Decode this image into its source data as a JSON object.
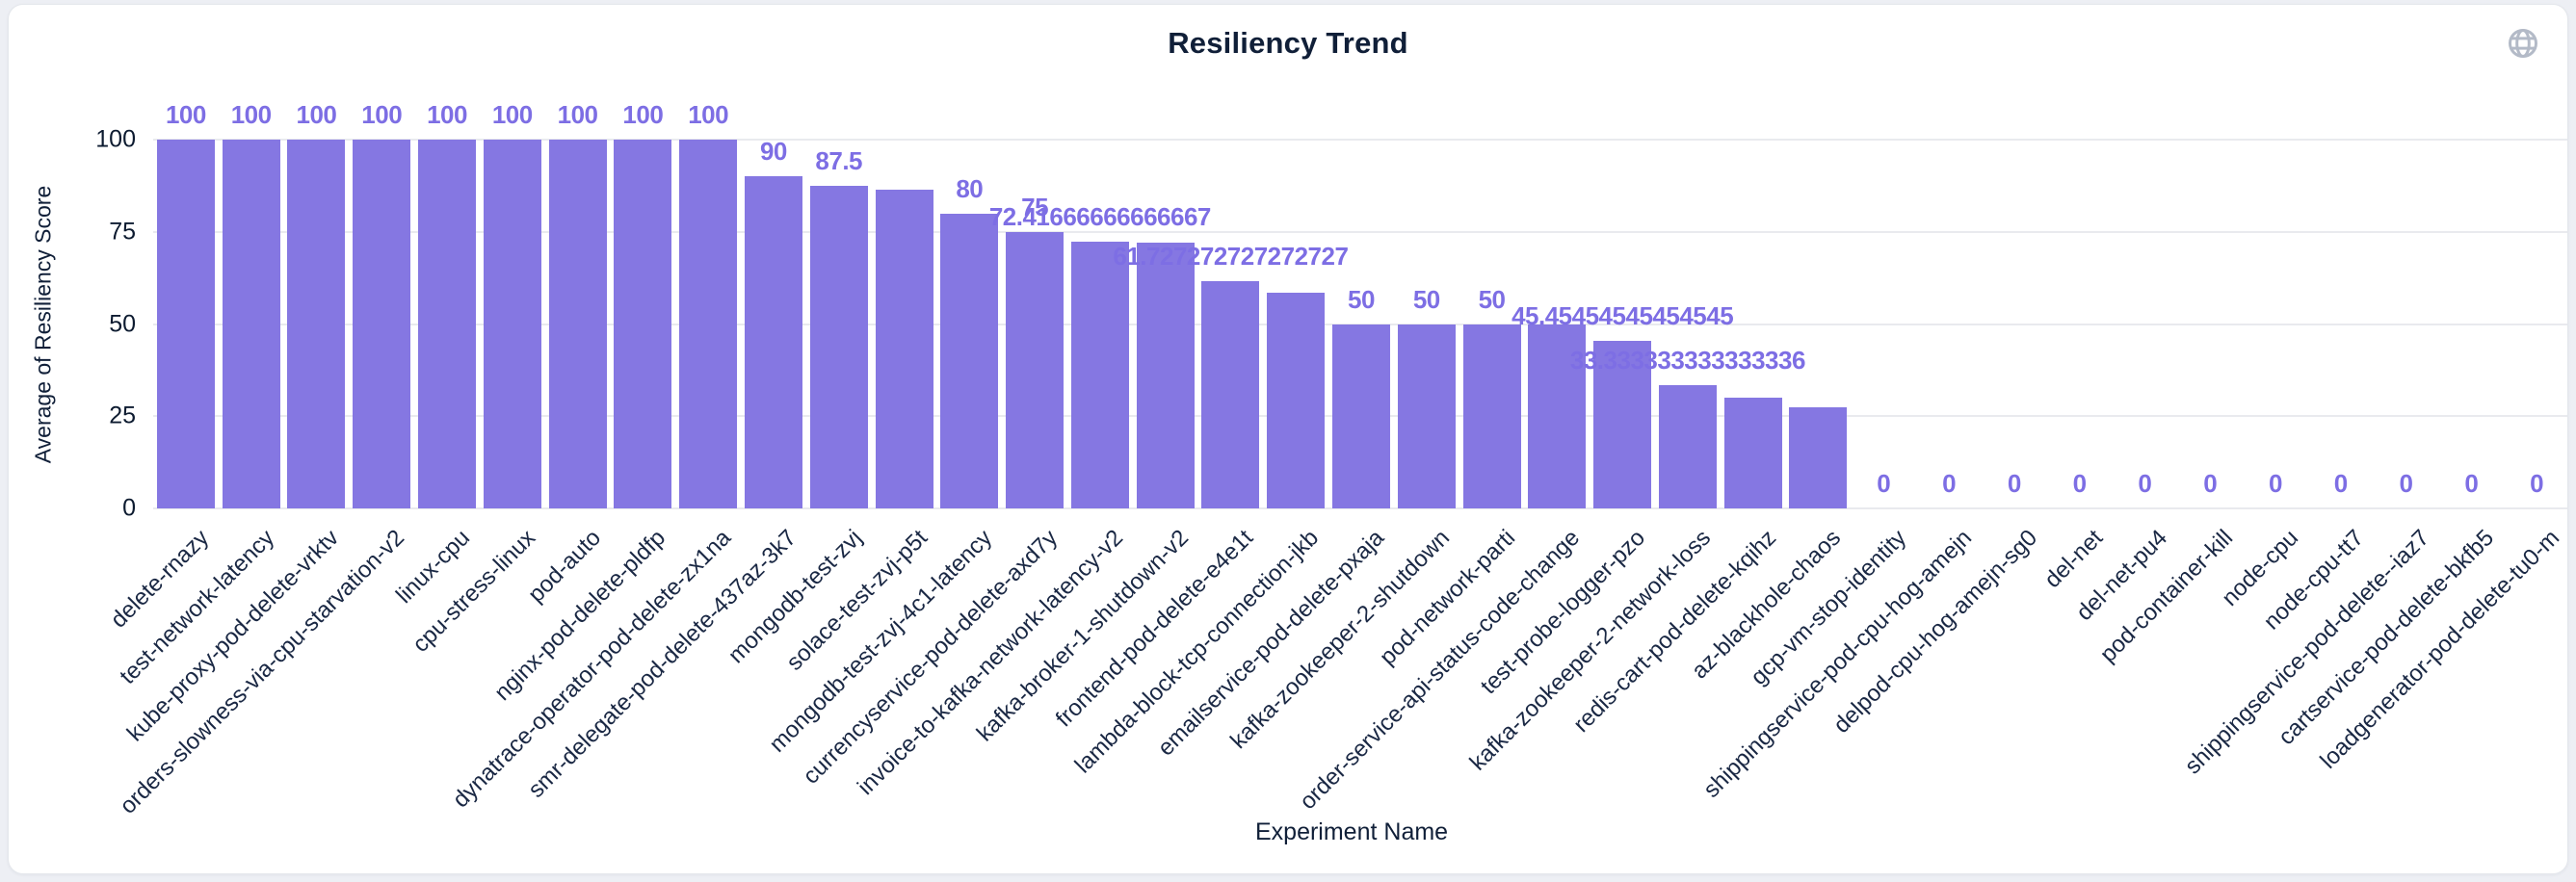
{
  "header": {
    "title": "Resiliency Trend",
    "globe_icon": "globe-icon",
    "globe_color": "#b3bac7"
  },
  "chart_data": {
    "type": "bar",
    "title": "Resiliency Trend",
    "xlabel": "Experiment Name",
    "ylabel": "Average of Resiliency Score",
    "ylim": [
      0,
      100
    ],
    "yticks": [
      0,
      25,
      50,
      75,
      100
    ],
    "grid": true,
    "legend": "none",
    "bar_color": "#8577e2",
    "value_label_color": "#7d6ee4",
    "categories": [
      "delete-rnazy",
      "test-network-latency",
      "kube-proxy-pod-delete-vrktv",
      "orders-slowness-via-cpu-starvation-v2",
      "linux-cpu",
      "cpu-stress-linux",
      "pod-auto",
      "nginx-pod-delete-pldfp",
      "dynatrace-operator-pod-delete-zx1na",
      "smr-delegate-pod-delete-437az-3k7",
      "mongodb-test-zvj",
      "solace-test-zvj-p5t",
      "mongodb-test-zvj-4c1-latency",
      "currencyservice-pod-delete-axd7y",
      "invoice-to-kafka-network-latency-v2",
      "kafka-broker-1-shutdown-v2",
      "frontend-pod-delete-e4e1t",
      "lambda-block-tcp-connection-jkb",
      "emailservice-pod-delete-pxaja",
      "kafka-zookeeper-2-shutdown",
      "pod-network-parti",
      "order-service-api-status-code-change",
      "test-probe-logger-pzo",
      "kafka-zookeeper-2-network-loss",
      "redis-cart-pod-delete-kqihz",
      "az-blackhole-chaos",
      "gcp-vm-stop-identity",
      "shippingservice-pod-cpu-hog-amejn",
      "delpod-cpu-hog-amejn-sg0",
      "del-net",
      "del-net-pu4",
      "pod-container-kill",
      "node-cpu",
      "node-cpu-tt7",
      "shippingservice-pod-delete--iaz7",
      "cartservice-pod-delete-bkfb5",
      "loadgenerator-pod-delete-tu0-m"
    ],
    "values": [
      100,
      100,
      100,
      100,
      100,
      100,
      100,
      100,
      100,
      90,
      87.5,
      86.4,
      80,
      75,
      72.41666666666667,
      72.1,
      61.72727272727273,
      58.4,
      50,
      50,
      50,
      50,
      45.45454545454545,
      33.333333333333336,
      30,
      27.3,
      0,
      0,
      0,
      0,
      0,
      0,
      0,
      0,
      0,
      0,
      0
    ],
    "visible_value_labels": [
      "100",
      "100",
      "100",
      "100",
      "100",
      "100",
      "100",
      "100",
      "100",
      "90",
      "87.5",
      "",
      "80",
      "75",
      "72.41666666666667",
      "",
      "61.727272727272727",
      "",
      "50",
      "50",
      "50",
      "",
      "45.45454545454545",
      "33.333333333333336",
      "",
      "",
      "0",
      "0",
      "0",
      "0",
      "0",
      "0",
      "0",
      "0",
      "0",
      "0",
      "0"
    ]
  }
}
